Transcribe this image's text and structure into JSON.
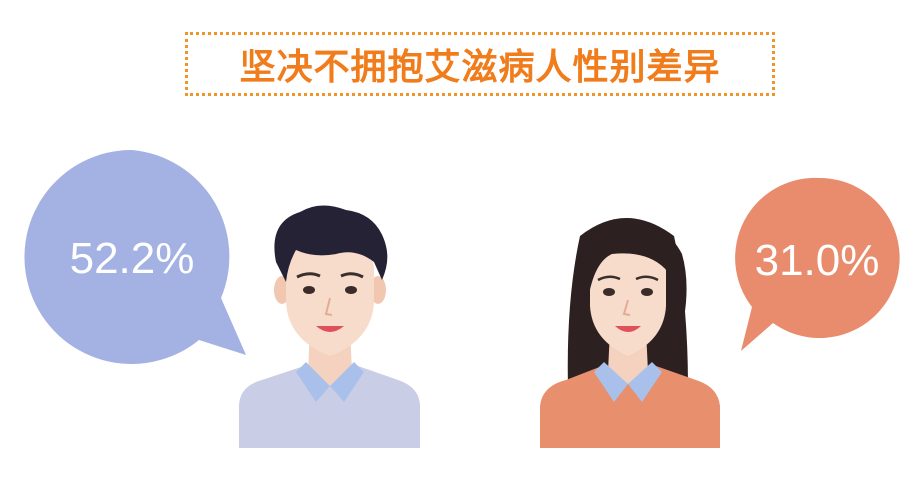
{
  "title": "坚决不拥抱艾滋病人性别差异",
  "colors": {
    "title": "#f07c1c",
    "male_bubble": "#a4b1e3",
    "female_bubble": "#e98b6d",
    "male_shirt": "#c9cde6",
    "female_shirt": "#e8906d",
    "collar": "#a9c1ea"
  },
  "chart_data": {
    "type": "bubble-infographic",
    "categories": [
      "male",
      "female"
    ],
    "values": [
      52.2,
      31.0
    ],
    "labels": [
      "52.2%",
      "31.0%"
    ]
  }
}
